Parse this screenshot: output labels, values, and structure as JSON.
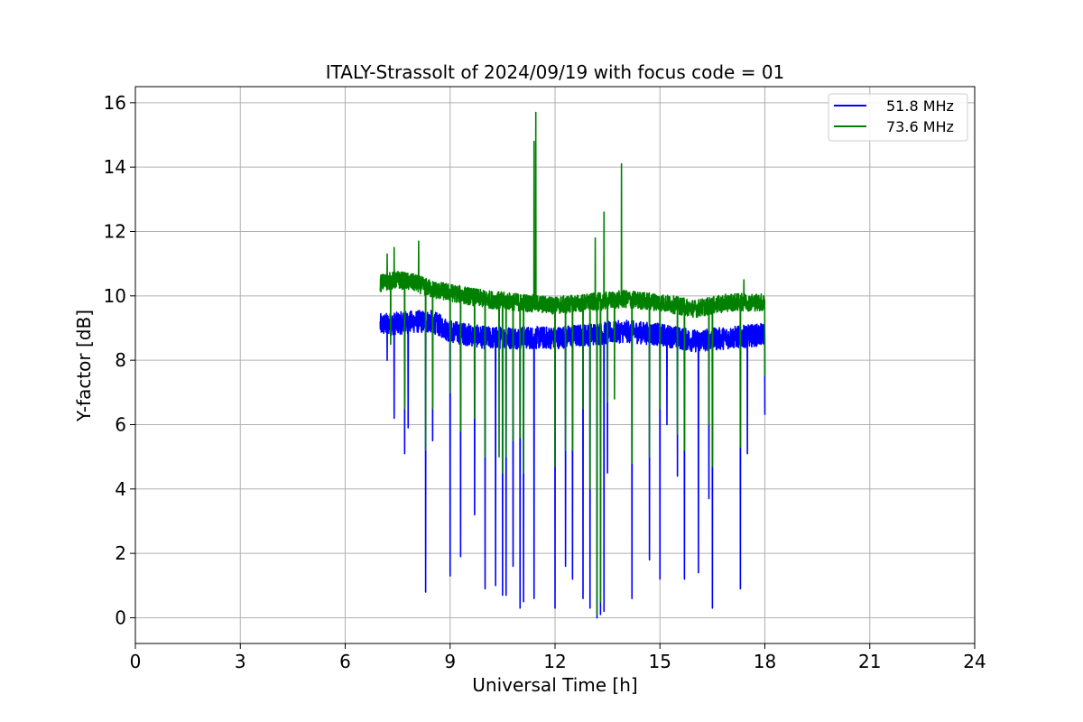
{
  "chart_data": {
    "type": "line",
    "title": "ITALY-Strassolt of 2024/09/19 with focus code = 01",
    "xlabel": "Universal Time [h]",
    "ylabel": "Y-factor [dB]",
    "xlim": [
      0,
      24
    ],
    "ylim": [
      -0.8,
      16.5
    ],
    "xticks": [
      0,
      3,
      6,
      9,
      12,
      15,
      18,
      21,
      24
    ],
    "yticks": [
      0,
      2,
      4,
      6,
      8,
      10,
      12,
      14,
      16
    ],
    "grid": true,
    "legend_position": "top-right",
    "series": [
      {
        "name": "51.8 MHz",
        "color": "#0000ff",
        "x_start": 7.0,
        "x_end": 18.0,
        "baseline": [
          [
            7.0,
            9.1
          ],
          [
            8.0,
            9.2
          ],
          [
            8.5,
            9.2
          ],
          [
            9.0,
            8.9
          ],
          [
            10.0,
            8.7
          ],
          [
            11.0,
            8.7
          ],
          [
            12.0,
            8.7
          ],
          [
            13.0,
            8.8
          ],
          [
            14.0,
            8.9
          ],
          [
            15.0,
            8.8
          ],
          [
            16.0,
            8.6
          ],
          [
            17.0,
            8.7
          ],
          [
            18.0,
            8.8
          ]
        ],
        "band_width": 0.7,
        "dips": [
          [
            7.2,
            8.0
          ],
          [
            7.4,
            6.2
          ],
          [
            7.7,
            5.1
          ],
          [
            7.8,
            5.9
          ],
          [
            8.3,
            0.8
          ],
          [
            8.5,
            5.5
          ],
          [
            9.0,
            1.3
          ],
          [
            9.3,
            1.9
          ],
          [
            9.7,
            3.2
          ],
          [
            10.0,
            0.9
          ],
          [
            10.3,
            1.0
          ],
          [
            10.5,
            0.7
          ],
          [
            10.6,
            0.7
          ],
          [
            10.8,
            1.6
          ],
          [
            11.0,
            0.3
          ],
          [
            11.1,
            0.5
          ],
          [
            11.4,
            0.6
          ],
          [
            12.0,
            0.3
          ],
          [
            12.3,
            1.6
          ],
          [
            12.5,
            1.2
          ],
          [
            12.8,
            0.6
          ],
          [
            13.0,
            0.3
          ],
          [
            13.2,
            0.0
          ],
          [
            13.3,
            0.1
          ],
          [
            13.4,
            0.2
          ],
          [
            13.5,
            4.5
          ],
          [
            14.2,
            0.6
          ],
          [
            14.7,
            1.8
          ],
          [
            15.0,
            1.2
          ],
          [
            15.2,
            6.0
          ],
          [
            15.5,
            4.4
          ],
          [
            15.7,
            1.2
          ],
          [
            16.1,
            1.4
          ],
          [
            16.4,
            3.7
          ],
          [
            16.5,
            0.3
          ],
          [
            17.3,
            0.9
          ],
          [
            17.5,
            5.1
          ],
          [
            18.0,
            6.3
          ]
        ],
        "spikes": []
      },
      {
        "name": "73.6 MHz",
        "color": "#008000",
        "x_start": 7.0,
        "x_end": 18.0,
        "baseline": [
          [
            7.0,
            10.4
          ],
          [
            7.5,
            10.5
          ],
          [
            8.0,
            10.4
          ],
          [
            8.5,
            10.2
          ],
          [
            9.0,
            10.1
          ],
          [
            10.0,
            9.9
          ],
          [
            11.0,
            9.8
          ],
          [
            12.0,
            9.7
          ],
          [
            13.0,
            9.8
          ],
          [
            14.0,
            9.9
          ],
          [
            15.0,
            9.8
          ],
          [
            16.0,
            9.6
          ],
          [
            17.0,
            9.8
          ],
          [
            18.0,
            9.8
          ]
        ],
        "band_width": 0.55,
        "dips": [
          [
            7.3,
            8.5
          ],
          [
            7.7,
            6.5
          ],
          [
            8.3,
            5.2
          ],
          [
            8.5,
            6.5
          ],
          [
            9.0,
            7.0
          ],
          [
            9.3,
            5.8
          ],
          [
            9.7,
            6.2
          ],
          [
            10.0,
            5.0
          ],
          [
            10.4,
            5.0
          ],
          [
            10.5,
            4.5
          ],
          [
            10.6,
            5.0
          ],
          [
            10.8,
            5.5
          ],
          [
            11.0,
            5.6
          ],
          [
            11.1,
            4.5
          ],
          [
            11.4,
            6.7
          ],
          [
            12.0,
            4.7
          ],
          [
            12.3,
            5.2
          ],
          [
            12.5,
            5.2
          ],
          [
            12.8,
            6.5
          ],
          [
            13.0,
            4.0
          ],
          [
            13.2,
            0.1
          ],
          [
            13.3,
            0.5
          ],
          [
            13.4,
            4.5
          ],
          [
            13.5,
            6.7
          ],
          [
            13.7,
            6.8
          ],
          [
            14.2,
            4.8
          ],
          [
            14.7,
            5.0
          ],
          [
            15.0,
            6.5
          ],
          [
            15.5,
            5.7
          ],
          [
            15.7,
            5.2
          ],
          [
            16.4,
            6.0
          ],
          [
            16.5,
            4.7
          ],
          [
            17.3,
            5.3
          ],
          [
            18.0,
            7.5
          ]
        ],
        "spikes": [
          [
            7.2,
            11.3
          ],
          [
            7.4,
            11.5
          ],
          [
            8.1,
            11.7
          ],
          [
            11.4,
            14.8
          ],
          [
            11.45,
            15.7
          ],
          [
            13.15,
            11.8
          ],
          [
            13.4,
            12.6
          ],
          [
            13.9,
            14.1
          ],
          [
            17.4,
            10.5
          ]
        ]
      }
    ]
  }
}
